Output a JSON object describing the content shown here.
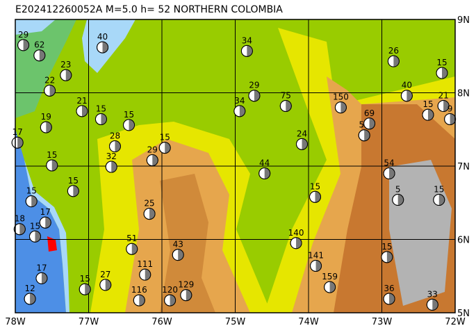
{
  "chart_data": {
    "type": "map",
    "title": "E202412260052A M=5.0 h= 52 NORTHERN COLOMBIA",
    "xlim": [
      -78,
      -72
    ],
    "ylim": [
      5,
      9
    ],
    "xticks": [
      {
        "value": -78,
        "label": "78W"
      },
      {
        "value": -77,
        "label": "77W"
      },
      {
        "value": -76,
        "label": "76W"
      },
      {
        "value": -75,
        "label": "75W"
      },
      {
        "value": -74,
        "label": "74W"
      },
      {
        "value": -73,
        "label": "73W"
      },
      {
        "value": -72,
        "label": "72W"
      }
    ],
    "yticks": [
      {
        "value": 5,
        "label": "5N"
      },
      {
        "value": 6,
        "label": "6N"
      },
      {
        "value": 7,
        "label": "7N"
      },
      {
        "value": 8,
        "label": "8N"
      },
      {
        "value": 9,
        "label": "9N"
      }
    ],
    "grid": true,
    "events": {
      "lon": [
        -77.89,
        -77.67,
        -76.81,
        -74.84,
        -72.84,
        -72.18,
        -77.53,
        -77.31,
        -74.74,
        -74.31,
        -74.94,
        -73.56,
        -72.66,
        -72.16,
        -72.37,
        -77.58,
        -77.09,
        -76.83,
        -76.45,
        -75.96,
        -77.97,
        -74.09,
        -74.6,
        -73.24,
        -73.17,
        -72.07,
        -76.13,
        -77.5,
        -77.21,
        -73.91,
        -72.78,
        -72.22,
        -76.17,
        -77.78,
        -77.94,
        -77.73,
        -77.59,
        -74.17,
        -76.41,
        -75.78,
        -73.9,
        -72.93,
        -76.23,
        -73.71,
        -77.05,
        -76.77,
        -76.31,
        -75.67,
        -75.89,
        -72.9,
        -72.31,
        -77.64,
        -77.8,
        -76.69,
        -76.64,
        -72.9
      ],
      "lat": [
        8.65,
        8.51,
        8.62,
        8.57,
        8.43,
        8.27,
        8.03,
        8.24,
        7.96,
        7.82,
        7.75,
        7.8,
        7.96,
        7.82,
        7.7,
        7.53,
        7.75,
        7.64,
        7.56,
        7.25,
        7.32,
        7.3,
        6.9,
        7.42,
        7.58,
        7.64,
        7.08,
        7.01,
        6.66,
        6.58,
        6.54,
        6.54,
        6.35,
        6.52,
        6.14,
        6.04,
        6.23,
        5.95,
        5.87,
        5.79,
        5.64,
        5.76,
        5.52,
        5.35,
        5.32,
        5.38,
        5.17,
        5.24,
        5.17,
        5.19,
        5.11,
        5.47,
        5.19,
        6.99,
        7.27,
        6.9
      ],
      "depth": [
        29,
        62,
        40,
        34,
        26,
        15,
        22,
        23,
        29,
        75,
        34,
        150,
        40,
        21,
        15,
        19,
        21,
        15,
        15,
        15,
        17,
        24,
        44,
        55,
        69,
        9,
        29,
        15,
        15,
        15,
        5,
        15,
        25,
        15,
        18,
        15,
        17,
        140,
        51,
        43,
        141,
        15,
        111,
        159,
        15,
        27,
        116,
        129,
        120,
        36,
        33,
        17,
        12,
        32,
        28,
        54
      ]
    }
  }
}
